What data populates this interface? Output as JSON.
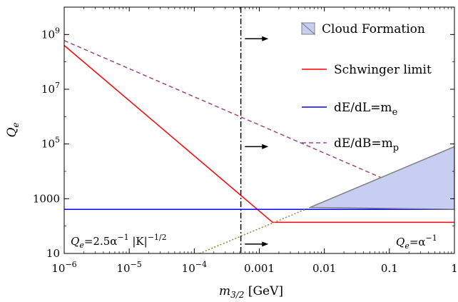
{
  "chart_data": {
    "type": "line",
    "xscale": "log",
    "yscale": "log",
    "xlim": [
      1e-06,
      1
    ],
    "ylim": [
      10,
      10000000000.0
    ],
    "x_ticks": [
      {
        "value": 1e-06,
        "base": "10",
        "exp": "−6"
      },
      {
        "value": 1e-05,
        "base": "10",
        "exp": "−5"
      },
      {
        "value": 0.0001,
        "base": "10",
        "exp": "−4"
      },
      {
        "value": 0.001,
        "label": "0.001"
      },
      {
        "value": 0.01,
        "label": "0.01"
      },
      {
        "value": 0.1,
        "label": "0.1"
      },
      {
        "value": 1,
        "label": "1"
      }
    ],
    "y_ticks": [
      {
        "value": 10,
        "label": "10"
      },
      {
        "value": 1000,
        "label": "1000"
      },
      {
        "value": 100000.0,
        "base": "10",
        "exp": "5"
      },
      {
        "value": 10000000.0,
        "base": "10",
        "exp": "7"
      },
      {
        "value": 1000000000.0,
        "base": "10",
        "exp": "9"
      }
    ],
    "xlabel": {
      "symbol": "m",
      "sub": "3/2",
      "unit": " [GeV]"
    },
    "ylabel": {
      "symbol": "Q",
      "sub": "e"
    },
    "series": [
      {
        "name": "Schwinger limit",
        "color": "#ff0000",
        "style": "solid",
        "points": [
          [
            1e-06,
            400000000.0
          ],
          [
            0.0016,
            137
          ],
          [
            1,
            137
          ]
        ]
      },
      {
        "name": "dE/dL=m",
        "name_sub": "e",
        "color": "#0000ff",
        "style": "solid",
        "points": [
          [
            1e-06,
            410
          ],
          [
            1,
            410
          ]
        ]
      },
      {
        "name": "dE/dB=m",
        "name_sub": "p",
        "color": "#9b4a7f",
        "style": "dashed",
        "points": [
          [
            1e-06,
            600000000.0
          ],
          [
            1,
            410
          ]
        ]
      },
      {
        "name": "Cloud Formation",
        "color": "#c8cdf2",
        "edge": "#808080",
        "style": "area",
        "points": [
          [
            0.006,
            480
          ],
          [
            1,
            80000
          ],
          [
            1,
            410
          ]
        ]
      },
      {
        "color": "#8a8a3a",
        "style": "dotted",
        "points": [
          [
            0.00012,
            10
          ],
          [
            0.006,
            480
          ]
        ]
      }
    ],
    "vline": {
      "x": 0.00052,
      "style": "dashdot",
      "color": "#000000"
    },
    "arrows": [
      {
        "x": 0.0006,
        "y": 700000000.0
      },
      {
        "x": 0.0006,
        "y": 80000
      },
      {
        "x": 0.0006,
        "y": 22
      }
    ],
    "annotations": {
      "qe_left": {
        "pre": "Q",
        "sub": "e",
        "mid": "=2.5α",
        "sup1": "−1",
        "post": " |K|",
        "sup2": "−1/2"
      },
      "qe_right": {
        "pre": "Q",
        "sub": "e",
        "mid": "=α",
        "sup": "−1"
      }
    },
    "legend_position": "top-right"
  }
}
